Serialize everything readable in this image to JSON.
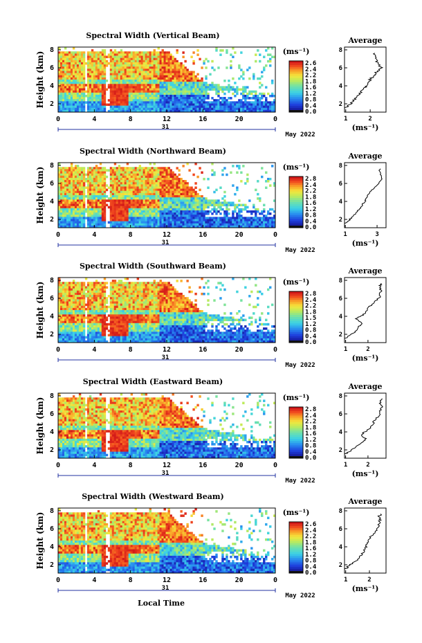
{
  "chart_data": [
    {
      "type": "heatmap",
      "title": "Spectral Width (Vertical Beam)",
      "ylabel": "Height (km)",
      "y_ticks": [
        "8",
        "6",
        "4",
        "2"
      ],
      "x_ticks": [
        "0",
        "4",
        "8",
        "12",
        "16",
        "20",
        "0"
      ],
      "day_label": "31",
      "month_label": "May 2022",
      "colorbar": {
        "unit": "(ms⁻¹)",
        "ticks": [
          "2.6",
          "2.4",
          "2.2",
          "1.8",
          "1.6",
          "1.2",
          "0.8",
          "0.4",
          "0.0"
        ]
      },
      "average": {
        "title": "Average",
        "x_ticks": [
          "1",
          "2"
        ],
        "y_ticks": [
          "8",
          "6",
          "4",
          "2"
        ],
        "xlabel": "(ms⁻¹)",
        "profile": [
          [
            1.0,
            1.5
          ],
          [
            1.2,
            2.0
          ],
          [
            1.4,
            2.6
          ],
          [
            1.6,
            3.2
          ],
          [
            1.75,
            3.8
          ],
          [
            1.9,
            4.2
          ],
          [
            2.0,
            4.8
          ],
          [
            2.15,
            5.3
          ],
          [
            2.3,
            5.8
          ],
          [
            2.45,
            6.2
          ],
          [
            2.3,
            6.8
          ],
          [
            2.2,
            7.4
          ],
          [
            2.15,
            8.0
          ]
        ]
      }
    },
    {
      "type": "heatmap",
      "title": "Spectral Width (Northward Beam)",
      "ylabel": "Height (km)",
      "y_ticks": [
        "8",
        "6",
        "4",
        "2"
      ],
      "x_ticks": [
        "0",
        "4",
        "8",
        "12",
        "16",
        "20",
        "0"
      ],
      "day_label": "31",
      "month_label": "May 2022",
      "colorbar": {
        "unit": "(ms⁻¹)",
        "ticks": [
          "2.8",
          "2.4",
          "2.2",
          "1.8",
          "1.6",
          "1.2",
          "0.8",
          "0.4",
          "0.0"
        ]
      },
      "average": {
        "title": "Average",
        "x_ticks": [
          "1",
          "3"
        ],
        "y_ticks": [
          "8",
          "6",
          "4",
          "2"
        ],
        "xlabel": "(ms⁻¹)",
        "profile": [
          [
            1.0,
            1.5
          ],
          [
            1.3,
            2.0
          ],
          [
            1.6,
            2.6
          ],
          [
            1.9,
            3.2
          ],
          [
            2.1,
            3.8
          ],
          [
            2.3,
            4.3
          ],
          [
            2.5,
            5.0
          ],
          [
            2.8,
            5.6
          ],
          [
            3.1,
            6.2
          ],
          [
            3.3,
            6.8
          ],
          [
            3.2,
            7.4
          ],
          [
            3.15,
            8.0
          ]
        ]
      }
    },
    {
      "type": "heatmap",
      "title": "Spectral Width (Southward Beam)",
      "ylabel": "Height (km)",
      "y_ticks": [
        "8",
        "6",
        "4",
        "2"
      ],
      "x_ticks": [
        "0",
        "4",
        "8",
        "12",
        "16",
        "20",
        "0"
      ],
      "day_label": "31",
      "month_label": "May 2022",
      "colorbar": {
        "unit": "(ms⁻¹)",
        "ticks": [
          "2.8",
          "2.4",
          "2.2",
          "1.8",
          "1.5",
          "1.2",
          "0.8",
          "0.4",
          "0.0"
        ]
      },
      "average": {
        "title": "Average",
        "x_ticks": [
          "1",
          "2"
        ],
        "y_ticks": [
          "8",
          "6",
          "4",
          "2"
        ],
        "xlabel": "(ms⁻¹)",
        "profile": [
          [
            1.0,
            1.5
          ],
          [
            1.3,
            2.0
          ],
          [
            1.5,
            2.6
          ],
          [
            1.7,
            3.2
          ],
          [
            1.5,
            3.8
          ],
          [
            1.8,
            4.3
          ],
          [
            2.0,
            5.0
          ],
          [
            2.3,
            5.7
          ],
          [
            2.5,
            6.3
          ],
          [
            2.6,
            7.0
          ],
          [
            2.55,
            7.6
          ],
          [
            2.6,
            8.0
          ]
        ]
      }
    },
    {
      "type": "heatmap",
      "title": "Spectral Width (Eastward Beam)",
      "ylabel": "Height (km)",
      "y_ticks": [
        "8",
        "6",
        "4",
        "2"
      ],
      "x_ticks": [
        "0",
        "4",
        "8",
        "12",
        "16",
        "20",
        "0"
      ],
      "day_label": "31",
      "month_label": "May 2022",
      "colorbar": {
        "unit": "(ms⁻¹)",
        "ticks": [
          "2.8",
          "2.4",
          "2.2",
          "1.8",
          "1.6",
          "1.2",
          "0.8",
          "0.4",
          "0.0"
        ]
      },
      "average": {
        "title": "Average",
        "x_ticks": [
          "1",
          "2"
        ],
        "y_ticks": [
          "8",
          "6",
          "4",
          "2"
        ],
        "xlabel": "(ms⁻¹)",
        "profile": [
          [
            1.0,
            1.5
          ],
          [
            1.3,
            2.0
          ],
          [
            1.6,
            2.6
          ],
          [
            1.9,
            3.2
          ],
          [
            1.7,
            3.8
          ],
          [
            2.0,
            4.3
          ],
          [
            2.2,
            5.0
          ],
          [
            2.4,
            5.7
          ],
          [
            2.55,
            6.3
          ],
          [
            2.6,
            7.0
          ],
          [
            2.55,
            7.6
          ],
          [
            2.6,
            8.0
          ]
        ]
      }
    },
    {
      "type": "heatmap",
      "title": "Spectral Width (Westward Beam)",
      "ylabel": "Height (km)",
      "y_ticks": [
        "8",
        "6",
        "4",
        "2"
      ],
      "x_ticks": [
        "0",
        "4",
        "8",
        "12",
        "16",
        "20",
        "0"
      ],
      "day_label": "31",
      "month_label": "May 2022",
      "xlabel": "Local Time",
      "colorbar": {
        "unit": "(ms⁻¹)",
        "ticks": [
          "2.6",
          "2.4",
          "2.2",
          "1.8",
          "1.6",
          "1.2",
          "0.8",
          "0.4",
          "0.0"
        ]
      },
      "average": {
        "title": "Average",
        "x_ticks": [
          "1",
          "2"
        ],
        "y_ticks": [
          "8",
          "6",
          "4",
          "2"
        ],
        "xlabel": "(ms⁻¹)",
        "profile": [
          [
            1.0,
            1.5
          ],
          [
            1.2,
            2.0
          ],
          [
            1.5,
            2.6
          ],
          [
            1.7,
            3.2
          ],
          [
            1.8,
            3.8
          ],
          [
            1.9,
            4.3
          ],
          [
            2.0,
            5.0
          ],
          [
            2.2,
            5.7
          ],
          [
            2.35,
            6.3
          ],
          [
            2.45,
            7.0
          ],
          [
            2.4,
            7.6
          ],
          [
            2.5,
            8.0
          ]
        ]
      }
    }
  ]
}
